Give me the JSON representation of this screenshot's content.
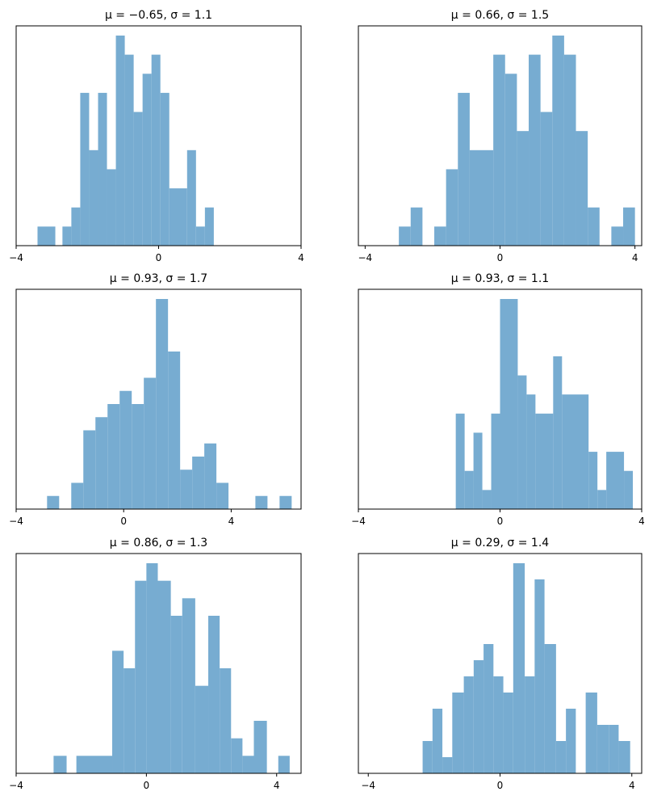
{
  "figure": {
    "grid_rows": 3,
    "grid_cols": 2,
    "bar_color": "#77acd1",
    "background": "#ffffff"
  },
  "chart_data": [
    {
      "type": "histogram",
      "title": "μ = −0.65,    σ = 1.1",
      "xlim": [
        -4,
        4
      ],
      "xticks": [
        -4,
        0,
        4
      ],
      "xtick_labels": [
        "−4",
        "0",
        "4"
      ],
      "yticks_visible": false,
      "bins": [
        {
          "x0": -3.4,
          "x1": -2.9,
          "count": 1
        },
        {
          "x0": -2.9,
          "x1": -2.7,
          "count": 0
        },
        {
          "x0": -2.7,
          "x1": -2.45,
          "count": 1
        },
        {
          "x0": -2.45,
          "x1": -2.2,
          "count": 2
        },
        {
          "x0": -2.2,
          "x1": -1.95,
          "count": 8
        },
        {
          "x0": -1.95,
          "x1": -1.7,
          "count": 5
        },
        {
          "x0": -1.7,
          "x1": -1.45,
          "count": 8
        },
        {
          "x0": -1.45,
          "x1": -1.2,
          "count": 4
        },
        {
          "x0": -1.2,
          "x1": -0.95,
          "count": 11
        },
        {
          "x0": -0.95,
          "x1": -0.7,
          "count": 10
        },
        {
          "x0": -0.7,
          "x1": -0.45,
          "count": 7
        },
        {
          "x0": -0.45,
          "x1": -0.2,
          "count": 9
        },
        {
          "x0": -0.2,
          "x1": 0.05,
          "count": 10
        },
        {
          "x0": 0.05,
          "x1": 0.3,
          "count": 8
        },
        {
          "x0": 0.3,
          "x1": 0.8,
          "count": 3
        },
        {
          "x0": 0.8,
          "x1": 1.05,
          "count": 5
        },
        {
          "x0": 1.05,
          "x1": 1.3,
          "count": 1
        },
        {
          "x0": 1.3,
          "x1": 1.55,
          "count": 2
        }
      ]
    },
    {
      "type": "histogram",
      "title": "μ = 0.66,    σ = 1.5",
      "xlim": [
        -4.2,
        4.2
      ],
      "xticks": [
        -4,
        0,
        4
      ],
      "xtick_labels": [
        "−4",
        "0",
        "4"
      ],
      "yticks_visible": false,
      "bins": [
        {
          "x0": -3.0,
          "x1": -2.65,
          "count": 1
        },
        {
          "x0": -2.65,
          "x1": -2.3,
          "count": 2
        },
        {
          "x0": -1.95,
          "x1": -1.6,
          "count": 1
        },
        {
          "x0": -1.6,
          "x1": -1.25,
          "count": 4
        },
        {
          "x0": -1.25,
          "x1": -0.9,
          "count": 8
        },
        {
          "x0": -0.9,
          "x1": -0.2,
          "count": 5
        },
        {
          "x0": -0.2,
          "x1": 0.15,
          "count": 10
        },
        {
          "x0": 0.15,
          "x1": 0.5,
          "count": 9
        },
        {
          "x0": 0.5,
          "x1": 0.85,
          "count": 6
        },
        {
          "x0": 0.85,
          "x1": 1.2,
          "count": 10
        },
        {
          "x0": 1.2,
          "x1": 1.55,
          "count": 7
        },
        {
          "x0": 1.55,
          "x1": 1.9,
          "count": 11
        },
        {
          "x0": 1.9,
          "x1": 2.25,
          "count": 10
        },
        {
          "x0": 2.25,
          "x1": 2.6,
          "count": 6
        },
        {
          "x0": 2.6,
          "x1": 2.95,
          "count": 2
        },
        {
          "x0": 3.3,
          "x1": 3.65,
          "count": 1
        },
        {
          "x0": 3.65,
          "x1": 4.0,
          "count": 2
        }
      ]
    },
    {
      "type": "histogram",
      "title": "μ = 0.93,    σ = 1.7",
      "xlim": [
        -4,
        6.6
      ],
      "xticks": [
        -4,
        0,
        4
      ],
      "xtick_labels": [
        "−4",
        "0",
        "4"
      ],
      "yticks_visible": false,
      "bins": [
        {
          "x0": -2.85,
          "x1": -2.4,
          "count": 1
        },
        {
          "x0": -1.95,
          "x1": -1.5,
          "count": 2
        },
        {
          "x0": -1.5,
          "x1": -1.05,
          "count": 6
        },
        {
          "x0": -1.05,
          "x1": -0.6,
          "count": 7
        },
        {
          "x0": -0.6,
          "x1": -0.15,
          "count": 8
        },
        {
          "x0": -0.15,
          "x1": 0.3,
          "count": 9
        },
        {
          "x0": 0.3,
          "x1": 0.75,
          "count": 8
        },
        {
          "x0": 0.75,
          "x1": 1.2,
          "count": 10
        },
        {
          "x0": 1.2,
          "x1": 1.65,
          "count": 16
        },
        {
          "x0": 1.65,
          "x1": 2.1,
          "count": 12
        },
        {
          "x0": 2.1,
          "x1": 2.55,
          "count": 3
        },
        {
          "x0": 2.55,
          "x1": 3.0,
          "count": 4
        },
        {
          "x0": 3.0,
          "x1": 3.45,
          "count": 5
        },
        {
          "x0": 3.45,
          "x1": 3.9,
          "count": 2
        },
        {
          "x0": 4.9,
          "x1": 5.35,
          "count": 1
        },
        {
          "x0": 5.8,
          "x1": 6.25,
          "count": 1
        }
      ]
    },
    {
      "type": "histogram",
      "title": "μ = 0.93,    σ = 1.1",
      "xlim": [
        -4,
        4
      ],
      "xticks": [
        -4,
        0,
        4
      ],
      "xtick_labels": [
        "−4",
        "0",
        "4"
      ],
      "yticks_visible": false,
      "bins": [
        {
          "x0": -1.25,
          "x1": -1.0,
          "count": 5
        },
        {
          "x0": -1.0,
          "x1": -0.75,
          "count": 2
        },
        {
          "x0": -0.75,
          "x1": -0.5,
          "count": 4
        },
        {
          "x0": -0.5,
          "x1": -0.25,
          "count": 1
        },
        {
          "x0": -0.25,
          "x1": 0.0,
          "count": 5
        },
        {
          "x0": 0.0,
          "x1": 0.5,
          "count": 11
        },
        {
          "x0": 0.5,
          "x1": 0.75,
          "count": 7
        },
        {
          "x0": 0.75,
          "x1": 1.0,
          "count": 6
        },
        {
          "x0": 1.0,
          "x1": 1.5,
          "count": 5
        },
        {
          "x0": 1.5,
          "x1": 1.75,
          "count": 8
        },
        {
          "x0": 1.75,
          "x1": 2.5,
          "count": 6
        },
        {
          "x0": 2.5,
          "x1": 2.75,
          "count": 3
        },
        {
          "x0": 2.75,
          "x1": 3.0,
          "count": 1
        },
        {
          "x0": 3.0,
          "x1": 3.5,
          "count": 3
        },
        {
          "x0": 3.5,
          "x1": 3.75,
          "count": 2
        }
      ]
    },
    {
      "type": "histogram",
      "title": "μ = 0.86,    σ = 1.3",
      "xlim": [
        -4,
        4.75
      ],
      "xticks": [
        -4,
        0,
        4
      ],
      "xtick_labels": [
        "−4",
        "0",
        "4"
      ],
      "yticks_visible": false,
      "bins": [
        {
          "x0": -2.85,
          "x1": -2.45,
          "count": 1
        },
        {
          "x0": -2.15,
          "x1": -1.05,
          "count": 1
        },
        {
          "x0": -1.05,
          "x1": -0.7,
          "count": 7
        },
        {
          "x0": -0.7,
          "x1": -0.35,
          "count": 6
        },
        {
          "x0": -0.35,
          "x1": 0.0,
          "count": 11
        },
        {
          "x0": 0.0,
          "x1": 0.35,
          "count": 12
        },
        {
          "x0": 0.35,
          "x1": 0.75,
          "count": 11
        },
        {
          "x0": 0.75,
          "x1": 1.1,
          "count": 9
        },
        {
          "x0": 1.1,
          "x1": 1.5,
          "count": 10
        },
        {
          "x0": 1.5,
          "x1": 1.9,
          "count": 5
        },
        {
          "x0": 1.9,
          "x1": 2.25,
          "count": 9
        },
        {
          "x0": 2.25,
          "x1": 2.6,
          "count": 6
        },
        {
          "x0": 2.6,
          "x1": 2.95,
          "count": 2
        },
        {
          "x0": 2.95,
          "x1": 3.3,
          "count": 1
        },
        {
          "x0": 3.3,
          "x1": 3.7,
          "count": 3
        },
        {
          "x0": 4.05,
          "x1": 4.4,
          "count": 1
        }
      ]
    },
    {
      "type": "histogram",
      "title": "μ = 0.29,    σ = 1.4",
      "xlim": [
        -4.3,
        4.3
      ],
      "xticks": [
        -4,
        0,
        4
      ],
      "xtick_labels": [
        "−4",
        "0",
        "4"
      ],
      "yticks_visible": false,
      "bins": [
        {
          "x0": -2.35,
          "x1": -2.05,
          "count": 2
        },
        {
          "x0": -2.05,
          "x1": -1.75,
          "count": 4
        },
        {
          "x0": -1.75,
          "x1": -1.45,
          "count": 1
        },
        {
          "x0": -1.45,
          "x1": -1.1,
          "count": 5
        },
        {
          "x0": -1.1,
          "x1": -0.8,
          "count": 6
        },
        {
          "x0": -0.8,
          "x1": -0.5,
          "count": 7
        },
        {
          "x0": -0.5,
          "x1": -0.2,
          "count": 8
        },
        {
          "x0": -0.2,
          "x1": 0.1,
          "count": 6
        },
        {
          "x0": 0.1,
          "x1": 0.4,
          "count": 5
        },
        {
          "x0": 0.4,
          "x1": 0.75,
          "count": 13
        },
        {
          "x0": 0.75,
          "x1": 1.05,
          "count": 6
        },
        {
          "x0": 1.05,
          "x1": 1.35,
          "count": 12
        },
        {
          "x0": 1.35,
          "x1": 1.7,
          "count": 8
        },
        {
          "x0": 1.7,
          "x1": 2.0,
          "count": 2
        },
        {
          "x0": 2.0,
          "x1": 2.3,
          "count": 4
        },
        {
          "x0": 2.6,
          "x1": 2.95,
          "count": 5
        },
        {
          "x0": 2.95,
          "x1": 3.3,
          "count": 3
        },
        {
          "x0": 3.3,
          "x1": 3.6,
          "count": 3
        },
        {
          "x0": 3.6,
          "x1": 3.95,
          "count": 2
        }
      ]
    }
  ]
}
